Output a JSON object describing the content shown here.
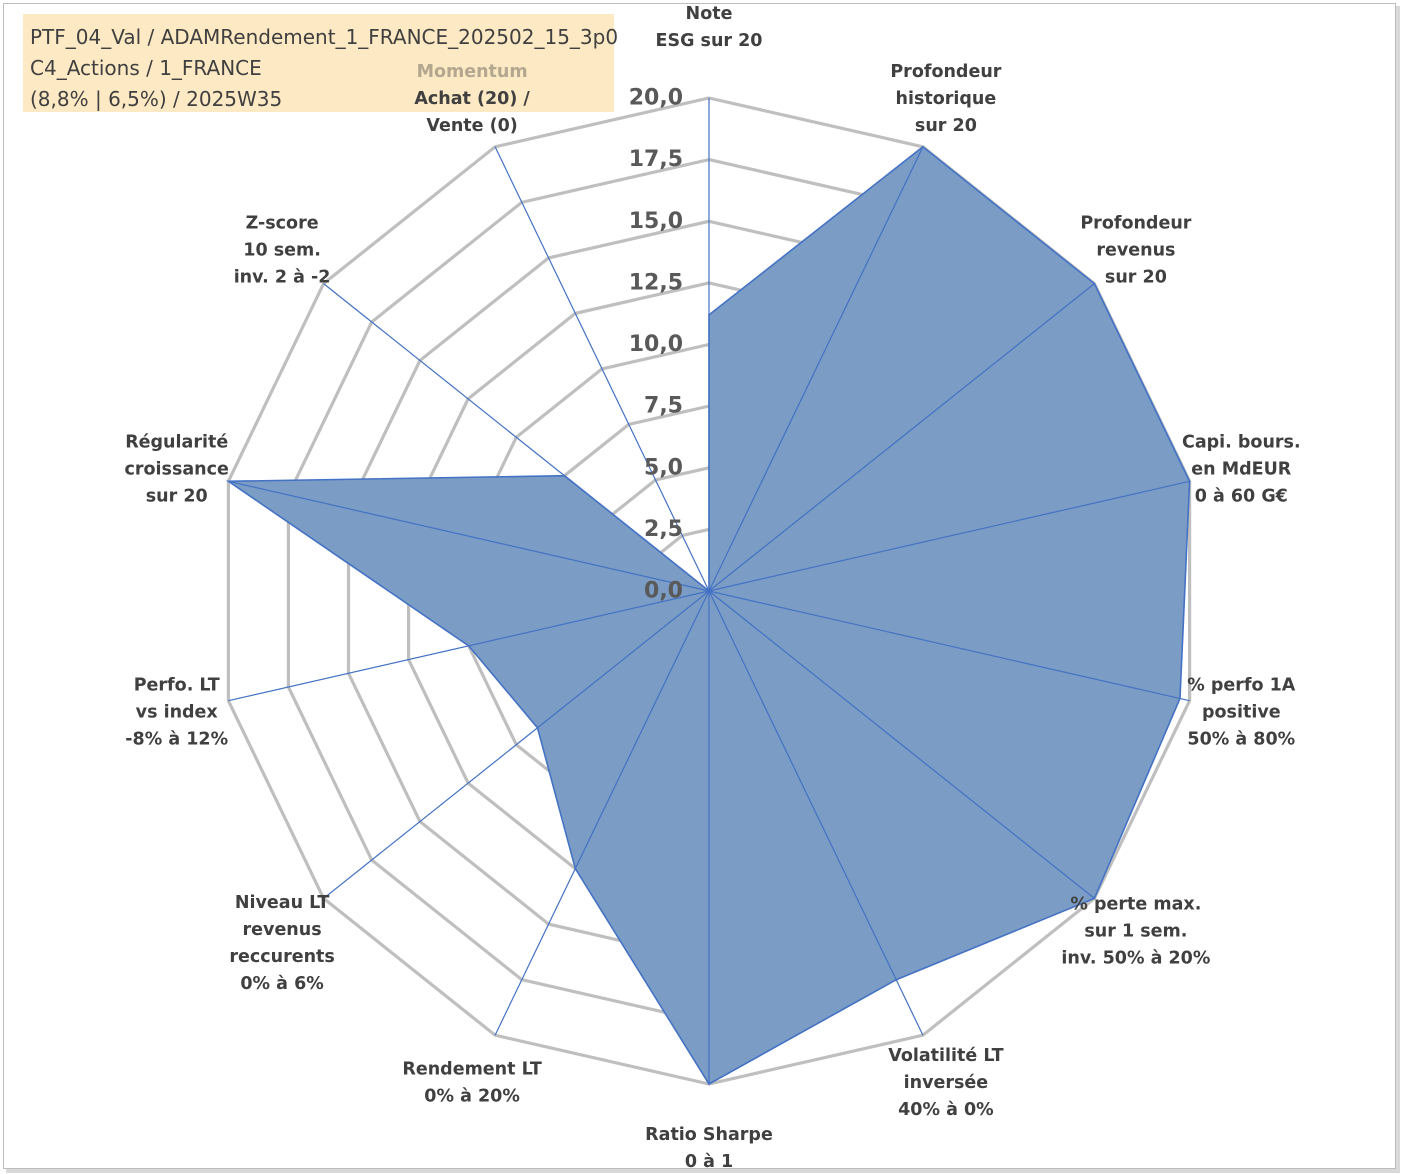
{
  "info": {
    "line1": "PTF_04_Val / ADAMRendement_1_FRANCE_202502_15_3p0",
    "line2": "C4_Actions / 1_FRANCE",
    "line3": "(8,8% | 6,5%) / 2025W35"
  },
  "colors": {
    "fill": "#7b9cc4",
    "stroke": "#4472c4",
    "grid": "#bfbfbf",
    "spoke": "#4472c4",
    "info_bg": "#fde9c3",
    "highlight_text": "#b3a78f"
  },
  "chart_data": {
    "type": "radar",
    "rlim": [
      0,
      20
    ],
    "grid": true,
    "ticks": [
      "0,0",
      "2,5",
      "5,0",
      "7,5",
      "10,0",
      "12,5",
      "15,0",
      "17,5",
      "20,0"
    ],
    "categories": [
      {
        "lines": [
          "Note",
          "ESG sur 20"
        ]
      },
      {
        "lines": [
          "Profondeur",
          "historique",
          "sur 20"
        ]
      },
      {
        "lines": [
          "Profondeur",
          "revenus",
          "sur 20"
        ]
      },
      {
        "lines": [
          "Capi. bours.",
          "en MdEUR",
          "0 à 60 G€"
        ]
      },
      {
        "lines": [
          "% perfo 1A",
          "positive",
          "50% à 80%"
        ]
      },
      {
        "lines": [
          "% perte max.",
          "sur 1 sem.",
          "inv. 50% à 20%"
        ]
      },
      {
        "lines": [
          "Volatilité LT",
          "inversée",
          "40% à 0%"
        ]
      },
      {
        "lines": [
          "Ratio Sharpe",
          "0 à 1"
        ]
      },
      {
        "lines": [
          "Rendement LT",
          "0% à 20%"
        ]
      },
      {
        "lines": [
          "Niveau LT",
          "revenus",
          "reccurents",
          "0% à 6%"
        ]
      },
      {
        "lines": [
          "Perfo. LT",
          "vs index",
          "-8% à 12%"
        ]
      },
      {
        "lines": [
          "Régularité",
          "croissance",
          "sur 20"
        ]
      },
      {
        "lines": [
          "Z-score",
          "10 sem.",
          "inv. 2 à -2"
        ]
      },
      {
        "lines": [
          "Momentum",
          "Achat (20) /",
          "Vente (0)"
        ]
      }
    ],
    "series": [
      {
        "values": [
          11.2,
          20.0,
          20.0,
          20.0,
          19.6,
          20.0,
          17.5,
          20.0,
          12.5,
          8.9,
          10.0,
          20.0,
          7.5,
          0.0
        ]
      }
    ]
  }
}
